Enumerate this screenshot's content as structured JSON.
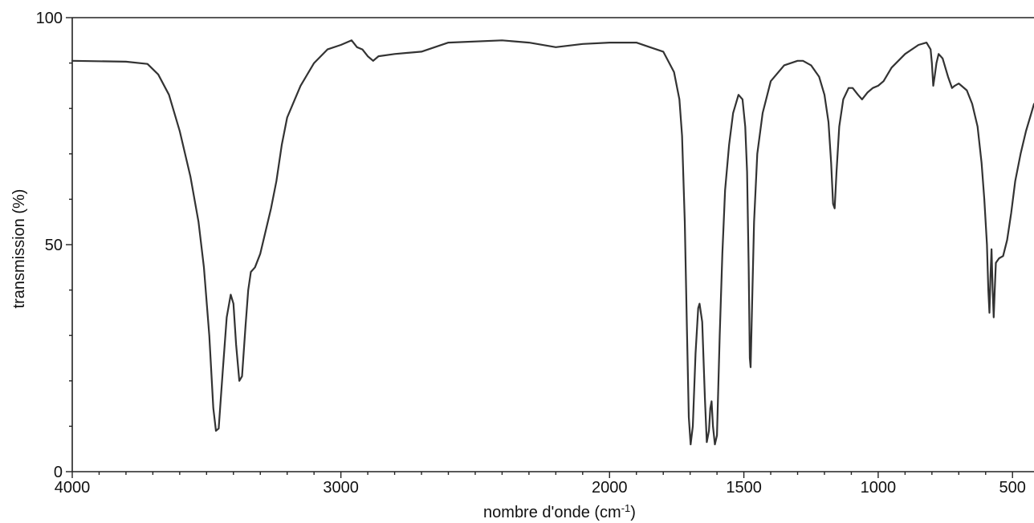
{
  "chart_data": {
    "type": "line",
    "title": "",
    "xlabel": "nombre d'onde (cm",
    "xlabel_sup": "-1",
    "xlabel_end": ")",
    "ylabel": "transmission (%)",
    "xlim": [
      4000,
      420
    ],
    "x_reversed": true,
    "ylim": [
      0,
      100
    ],
    "grid": false,
    "legend": "none",
    "x_ticks": [
      {
        "value": 4000,
        "label": "4000"
      },
      {
        "value": 3000,
        "label": "3000"
      },
      {
        "value": 2000,
        "label": "2000"
      },
      {
        "value": 1500,
        "label": "1500"
      },
      {
        "value": 1000,
        "label": "1000"
      },
      {
        "value": 500,
        "label": "500"
      }
    ],
    "y_ticks": [
      {
        "value": 0,
        "label": "0"
      },
      {
        "value": 50,
        "label": "50"
      },
      {
        "value": 100,
        "label": "100"
      }
    ],
    "line_color": "#333333",
    "series": [
      {
        "points": [
          [
            4000,
            90.5
          ],
          [
            3800,
            90.3
          ],
          [
            3720,
            89.8
          ],
          [
            3680,
            87.5
          ],
          [
            3640,
            83
          ],
          [
            3600,
            75
          ],
          [
            3560,
            65
          ],
          [
            3530,
            55
          ],
          [
            3510,
            45
          ],
          [
            3490,
            30
          ],
          [
            3475,
            14
          ],
          [
            3465,
            9
          ],
          [
            3455,
            9.5
          ],
          [
            3440,
            22
          ],
          [
            3425,
            34
          ],
          [
            3410,
            39
          ],
          [
            3400,
            37
          ],
          [
            3390,
            28
          ],
          [
            3378,
            20
          ],
          [
            3368,
            21
          ],
          [
            3355,
            32
          ],
          [
            3345,
            40
          ],
          [
            3335,
            44
          ],
          [
            3320,
            45
          ],
          [
            3300,
            48
          ],
          [
            3280,
            53
          ],
          [
            3260,
            58
          ],
          [
            3240,
            64
          ],
          [
            3220,
            72
          ],
          [
            3200,
            78
          ],
          [
            3150,
            85
          ],
          [
            3100,
            90
          ],
          [
            3050,
            93
          ],
          [
            3000,
            94
          ],
          [
            2960,
            95
          ],
          [
            2940,
            93.5
          ],
          [
            2920,
            93
          ],
          [
            2900,
            91.5
          ],
          [
            2880,
            90.5
          ],
          [
            2860,
            91.5
          ],
          [
            2800,
            92
          ],
          [
            2700,
            92.5
          ],
          [
            2600,
            94.5
          ],
          [
            2400,
            95
          ],
          [
            2300,
            94.5
          ],
          [
            2200,
            93.5
          ],
          [
            2100,
            94.2
          ],
          [
            2000,
            94.5
          ],
          [
            1900,
            94.5
          ],
          [
            1850,
            93.5
          ],
          [
            1800,
            92.5
          ],
          [
            1760,
            88
          ],
          [
            1740,
            82
          ],
          [
            1730,
            74
          ],
          [
            1720,
            55
          ],
          [
            1712,
            32
          ],
          [
            1705,
            12
          ],
          [
            1698,
            6
          ],
          [
            1690,
            10
          ],
          [
            1680,
            26
          ],
          [
            1670,
            36
          ],
          [
            1665,
            37
          ],
          [
            1655,
            33
          ],
          [
            1645,
            16
          ],
          [
            1638,
            6.5
          ],
          [
            1630,
            9
          ],
          [
            1625,
            14
          ],
          [
            1620,
            15.5
          ],
          [
            1615,
            10
          ],
          [
            1608,
            6
          ],
          [
            1600,
            8
          ],
          [
            1590,
            30
          ],
          [
            1580,
            48
          ],
          [
            1570,
            62
          ],
          [
            1555,
            72
          ],
          [
            1540,
            79
          ],
          [
            1520,
            83
          ],
          [
            1505,
            82
          ],
          [
            1495,
            76
          ],
          [
            1488,
            66
          ],
          [
            1482,
            45
          ],
          [
            1478,
            25
          ],
          [
            1475,
            23
          ],
          [
            1470,
            35
          ],
          [
            1462,
            55
          ],
          [
            1450,
            70
          ],
          [
            1430,
            79
          ],
          [
            1400,
            86
          ],
          [
            1350,
            89.5
          ],
          [
            1300,
            90.5
          ],
          [
            1280,
            90.5
          ],
          [
            1250,
            89.5
          ],
          [
            1220,
            87
          ],
          [
            1200,
            83
          ],
          [
            1185,
            77
          ],
          [
            1175,
            68
          ],
          [
            1168,
            59
          ],
          [
            1162,
            58
          ],
          [
            1155,
            66
          ],
          [
            1145,
            76
          ],
          [
            1130,
            82
          ],
          [
            1110,
            84.5
          ],
          [
            1095,
            84.5
          ],
          [
            1075,
            83
          ],
          [
            1060,
            82
          ],
          [
            1040,
            83.5
          ],
          [
            1020,
            84.5
          ],
          [
            1000,
            85
          ],
          [
            980,
            86
          ],
          [
            950,
            89
          ],
          [
            900,
            92
          ],
          [
            850,
            94
          ],
          [
            820,
            94.5
          ],
          [
            805,
            93
          ],
          [
            800,
            90
          ],
          [
            795,
            85
          ],
          [
            790,
            87
          ],
          [
            783,
            90
          ],
          [
            775,
            92
          ],
          [
            760,
            91
          ],
          [
            740,
            87
          ],
          [
            725,
            84.5
          ],
          [
            715,
            85
          ],
          [
            700,
            85.5
          ],
          [
            690,
            85
          ],
          [
            670,
            84
          ],
          [
            650,
            81
          ],
          [
            630,
            76
          ],
          [
            615,
            68
          ],
          [
            605,
            60
          ],
          [
            595,
            50
          ],
          [
            590,
            40
          ],
          [
            586,
            35
          ],
          [
            582,
            43
          ],
          [
            578,
            49
          ],
          [
            574,
            40
          ],
          [
            570,
            34
          ],
          [
            566,
            40
          ],
          [
            562,
            46
          ],
          [
            550,
            47
          ],
          [
            535,
            47.5
          ],
          [
            520,
            51
          ],
          [
            505,
            57
          ],
          [
            490,
            64
          ],
          [
            470,
            70
          ],
          [
            450,
            75
          ],
          [
            430,
            79
          ],
          [
            420,
            81
          ]
        ]
      }
    ]
  }
}
